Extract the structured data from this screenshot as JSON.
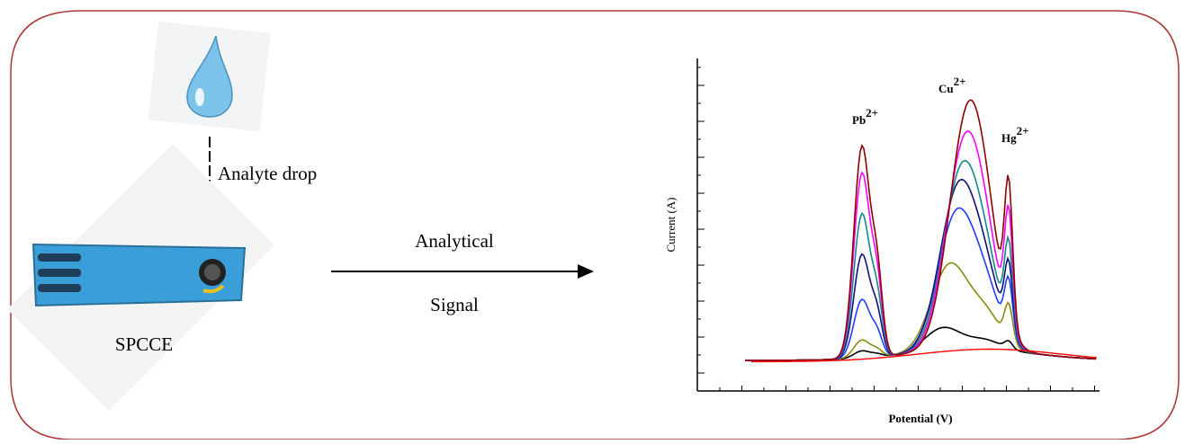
{
  "left": {
    "drop_label": "Analyte drop",
    "electrode_label": "SPCCE"
  },
  "arrow": {
    "top": "Analytical",
    "bottom": "Signal"
  },
  "plot": {
    "y_label": "Current (A)",
    "x_label": "Potential (V)",
    "peaks": [
      {
        "ion": "Pb",
        "charge": "2+"
      },
      {
        "ion": "Cu",
        "charge": "2+"
      },
      {
        "ion": "Hg",
        "charge": "2+"
      }
    ]
  }
}
